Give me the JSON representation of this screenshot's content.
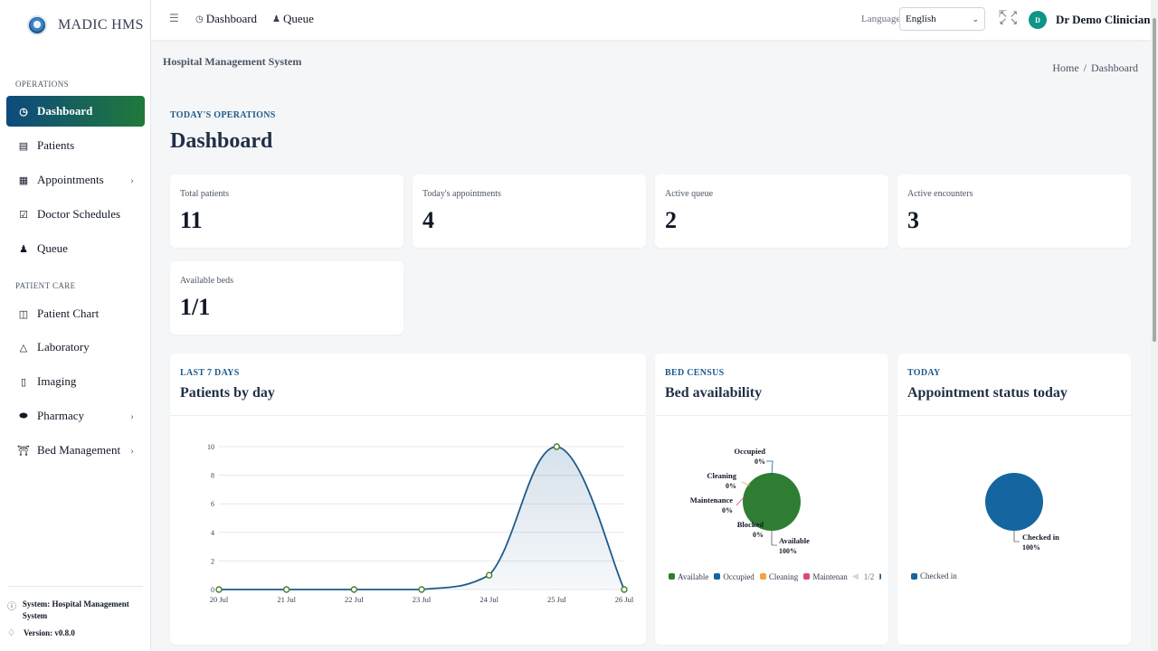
{
  "brand": {
    "name": "MADIC HMS"
  },
  "sidebar": {
    "section_operations": "OPERATIONS",
    "section_patient_care": "PATIENT CARE",
    "items": [
      {
        "label": "Dashboard",
        "icon": "gauge-icon"
      },
      {
        "label": "Patients",
        "icon": "id-card-icon"
      },
      {
        "label": "Appointments",
        "icon": "calendar-icon"
      },
      {
        "label": "Doctor Schedules",
        "icon": "calendar-check-icon"
      },
      {
        "label": "Queue",
        "icon": "users-icon"
      },
      {
        "label": "Patient Chart",
        "icon": "clipboard-icon"
      },
      {
        "label": "Laboratory",
        "icon": "flask-icon"
      },
      {
        "label": "Imaging",
        "icon": "file-icon"
      },
      {
        "label": "Pharmacy",
        "icon": "pill-icon"
      },
      {
        "label": "Bed Management",
        "icon": "hospital-icon"
      }
    ],
    "footer_system": "System: Hospital Management System",
    "footer_version": "Version: v0.8.0"
  },
  "topbar": {
    "links": [
      "Dashboard",
      "Queue"
    ],
    "language_label": "Language",
    "language_value": "English",
    "avatar_initial": "D",
    "user_name": "Dr Demo Clinician"
  },
  "header": {
    "section_title": "Hospital Management System",
    "breadcrumb_home": "Home",
    "breadcrumb_sep": "/",
    "breadcrumb_current": "Dashboard",
    "kicker": "TODAY'S OPERATIONS",
    "title": "Dashboard"
  },
  "stats": [
    {
      "label": "Total patients",
      "value": "11"
    },
    {
      "label": "Today's appointments",
      "value": "4"
    },
    {
      "label": "Active queue",
      "value": "2"
    },
    {
      "label": "Active encounters",
      "value": "3"
    },
    {
      "label": "Available beds",
      "value": "1/1"
    }
  ],
  "panels": {
    "patients": {
      "kicker": "LAST 7 DAYS",
      "title": "Patients by day"
    },
    "beds": {
      "kicker": "BED CENSUS",
      "title": "Bed availability"
    },
    "appointments": {
      "kicker": "TODAY",
      "title": "Appointment status today"
    }
  },
  "chart_data": [
    {
      "type": "area",
      "x": [
        "20 Jul",
        "21 Jul",
        "22 Jul",
        "23 Jul",
        "24 Jul",
        "25 Jul",
        "26 Jul"
      ],
      "values": [
        0,
        0,
        0,
        0,
        1,
        10,
        0
      ],
      "ylim": [
        0,
        10
      ],
      "yticks": [
        "0",
        "2",
        "4",
        "6",
        "8",
        "10"
      ],
      "grid": true,
      "color": "#1e5a8a"
    },
    {
      "type": "pie",
      "slices": [
        {
          "label": "Available",
          "value": 100,
          "pct": "100%",
          "color": "#2e7d32"
        },
        {
          "label": "Occupied",
          "value": 0,
          "pct": "0%",
          "color": "#1565a0"
        },
        {
          "label": "Cleaning",
          "value": 0,
          "pct": "0%",
          "color": "#f4a340"
        },
        {
          "label": "Maintenance",
          "value": 0,
          "pct": "0%",
          "color": "#e0457b"
        },
        {
          "label": "Blocked",
          "value": 0,
          "pct": "0%",
          "color": "#7b61c9"
        }
      ],
      "legend_visible": [
        "Available",
        "Occupied",
        "Cleaning",
        "Maintenan"
      ],
      "legend_page": "1/2",
      "legend": "bottom"
    },
    {
      "type": "pie",
      "slices": [
        {
          "label": "Checked in",
          "value": 100,
          "pct": "100%",
          "color": "#1565a0"
        }
      ],
      "legend": "bottom"
    }
  ]
}
